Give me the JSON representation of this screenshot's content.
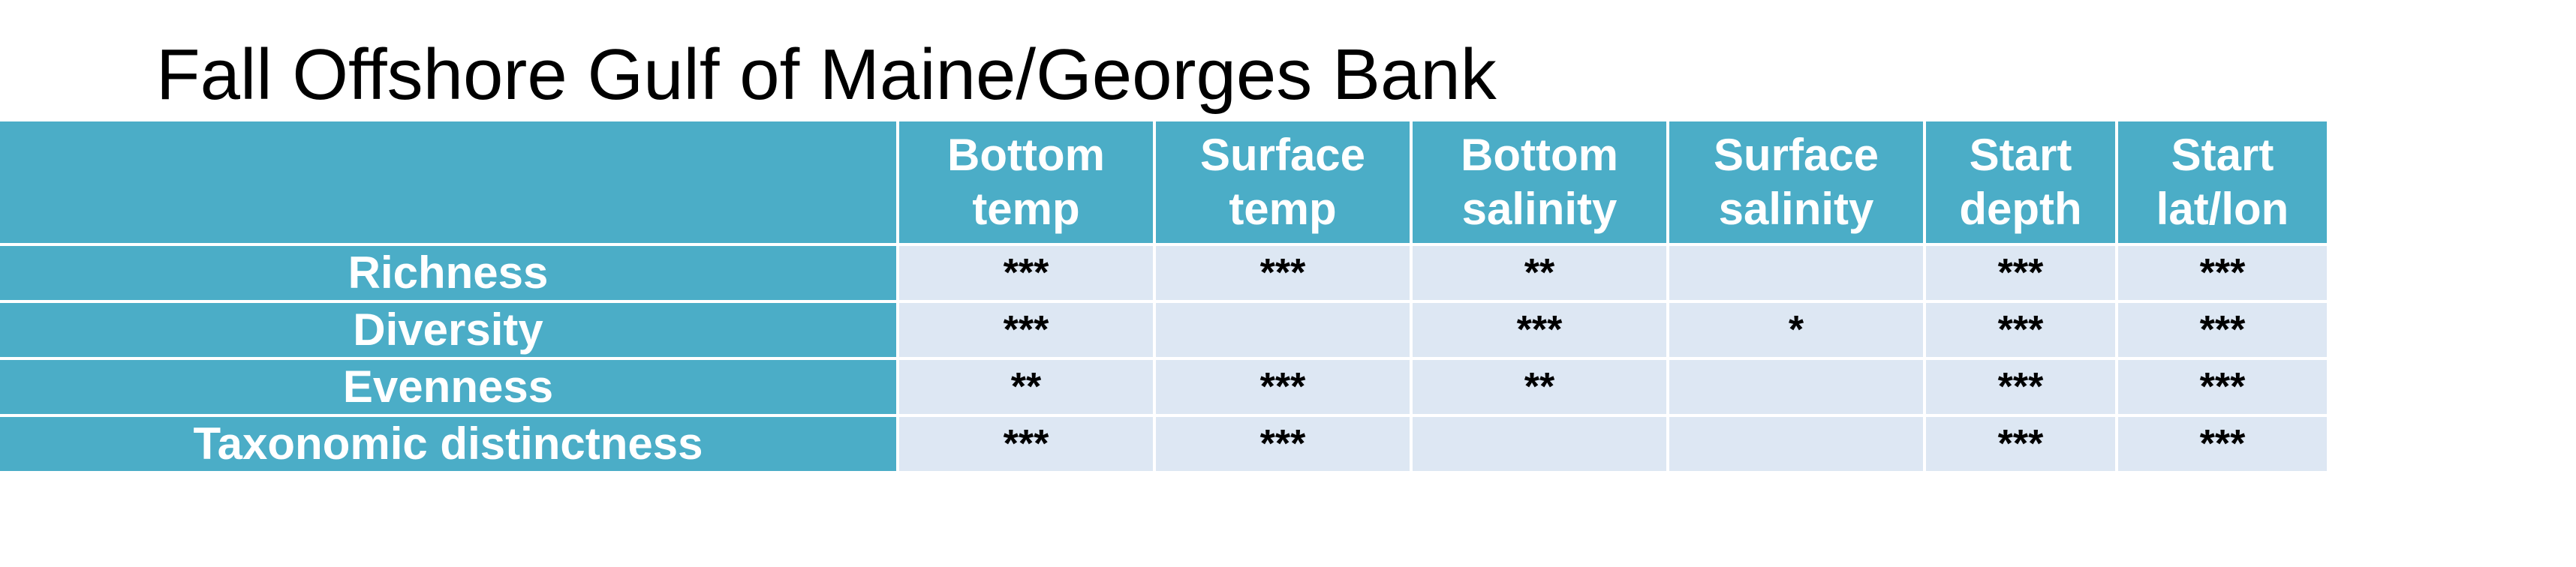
{
  "title": "Fall Offshore Gulf of Maine/Georges Bank",
  "table": {
    "corner": "",
    "columns": [
      [
        "Bottom",
        "temp"
      ],
      [
        "Surface",
        "temp"
      ],
      [
        "Bottom",
        "salinity"
      ],
      [
        "Surface",
        "salinity"
      ],
      [
        "Start",
        "depth"
      ],
      [
        "Start",
        "lat/lon"
      ]
    ],
    "rows": [
      {
        "label": "Richness",
        "cells": [
          "***",
          "***",
          "**",
          "",
          "***",
          "***"
        ]
      },
      {
        "label": "Diversity",
        "cells": [
          "***",
          "",
          "***",
          "*",
          "***",
          "***"
        ]
      },
      {
        "label": "Evenness",
        "cells": [
          "**",
          "***",
          "**",
          "",
          "***",
          "***"
        ]
      },
      {
        "label": "Taxonomic distinctness",
        "cells": [
          "***",
          "***",
          "",
          "",
          "***",
          "***"
        ]
      }
    ]
  },
  "colors": {
    "header_bg": "#4badc7",
    "cell_bg": "#dde7f3",
    "header_text": "#ffffff",
    "cell_text": "#000000"
  }
}
